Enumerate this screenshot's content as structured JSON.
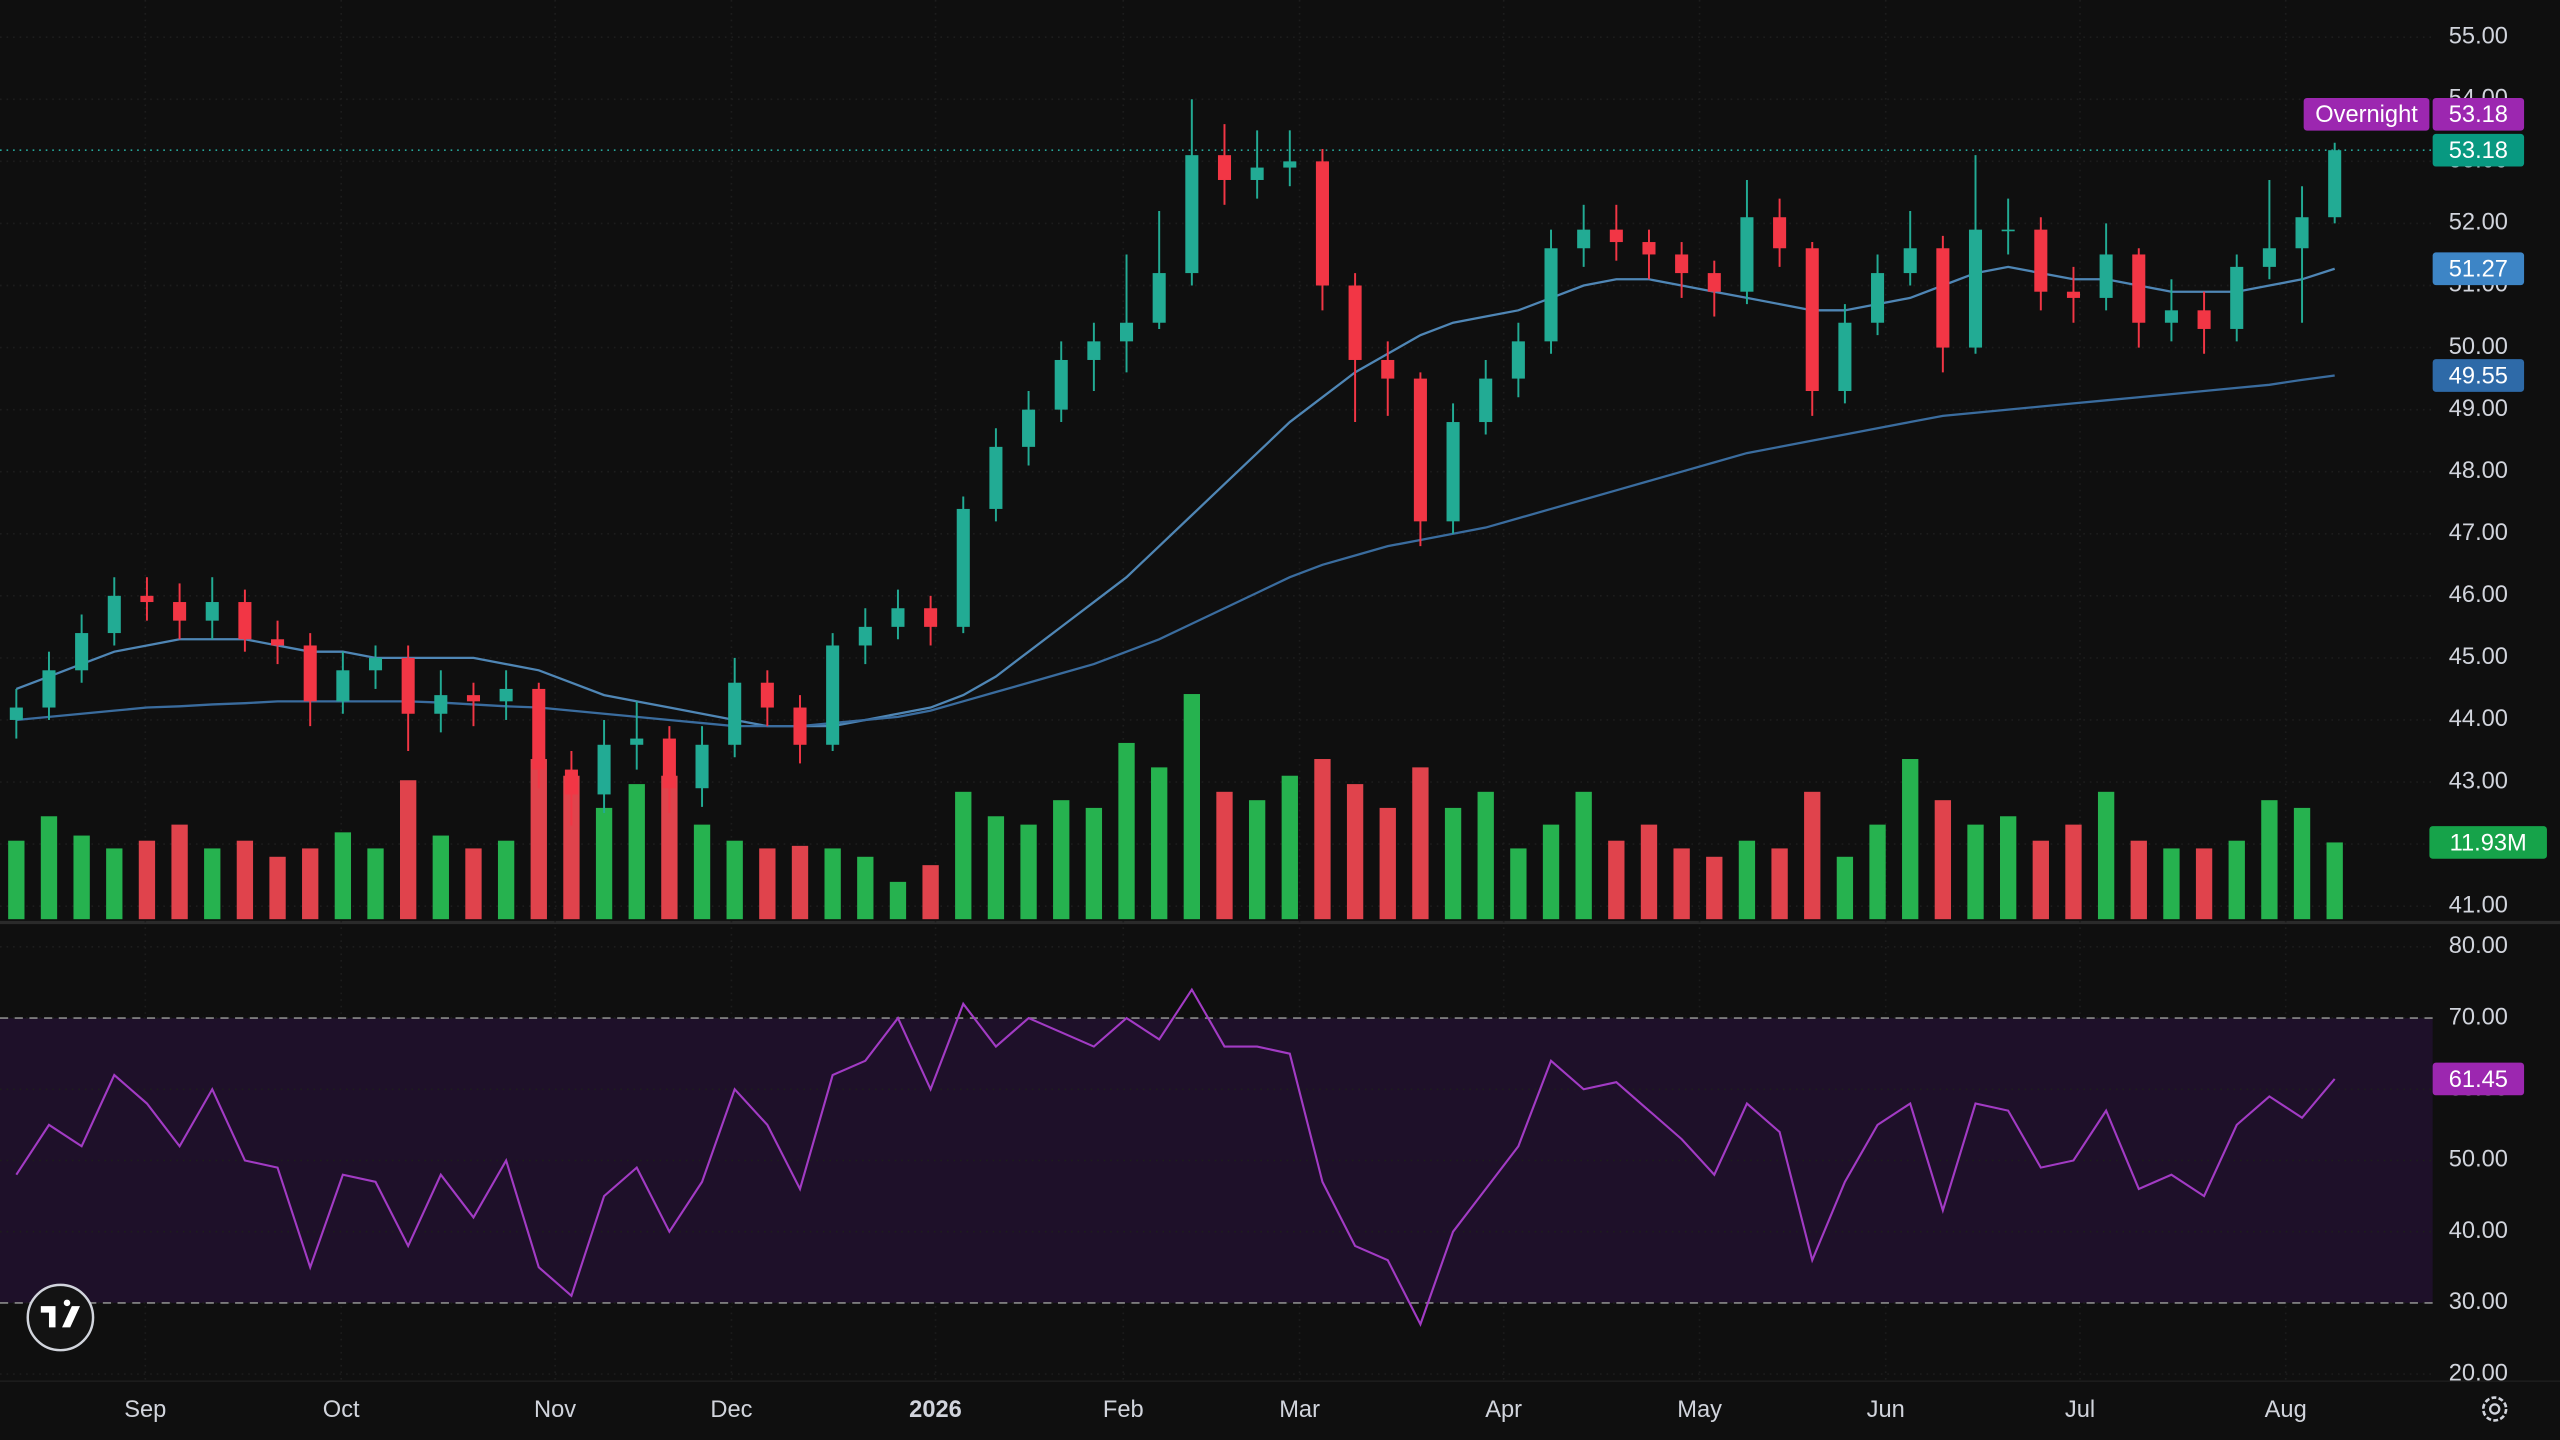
{
  "chart_data": {
    "type": "candlestick",
    "x_labels": [
      "Sep",
      "Oct",
      "Nov",
      "Dec",
      "2026",
      "Feb",
      "Mar",
      "Apr",
      "May",
      "Jun",
      "Jul",
      "Aug"
    ],
    "ylim": [
      40.79,
      55.6
    ],
    "yticks": [
      {
        "value": 41,
        "label": "41.00"
      },
      {
        "value": 42,
        "label": "42.00"
      },
      {
        "value": 43,
        "label": "43.00"
      },
      {
        "value": 44,
        "label": "44.00"
      },
      {
        "value": 45,
        "label": "45.00"
      },
      {
        "value": 46,
        "label": "46.00"
      },
      {
        "value": 47,
        "label": "47.00"
      },
      {
        "value": 48,
        "label": "48.00"
      },
      {
        "value": 49,
        "label": "49.00"
      },
      {
        "value": 50,
        "label": "50.00"
      },
      {
        "value": 51,
        "label": "51.00"
      },
      {
        "value": 52,
        "label": "52.00"
      },
      {
        "value": 53,
        "label": "53.00"
      },
      {
        "value": 54,
        "label": "54.00"
      },
      {
        "value": 55,
        "label": "55.00"
      }
    ],
    "grid": true,
    "open": [
      44.0,
      44.2,
      44.8,
      45.4,
      46.0,
      45.9,
      45.6,
      45.9,
      45.3,
      45.2,
      44.3,
      44.8,
      45.0,
      44.1,
      44.4,
      44.3,
      44.5,
      43.2,
      42.8,
      43.6,
      43.7,
      42.9,
      43.6,
      44.6,
      44.2,
      43.6,
      45.2,
      45.5,
      45.8,
      45.5,
      47.4,
      48.4,
      49.0,
      49.8,
      50.1,
      50.4,
      51.2,
      53.1,
      52.7,
      52.9,
      53.0,
      51.0,
      49.8,
      49.5,
      47.2,
      48.8,
      49.5,
      50.1,
      51.6,
      51.9,
      51.7,
      51.5,
      51.2,
      50.9,
      52.1,
      51.6,
      49.3,
      50.4,
      51.2,
      51.6,
      50.0,
      51.9,
      51.9,
      50.9,
      50.8,
      51.5,
      50.4,
      50.6,
      50.3,
      51.3,
      51.6,
      52.1
    ],
    "high": [
      44.5,
      45.1,
      45.7,
      46.3,
      46.3,
      46.2,
      46.3,
      46.1,
      45.6,
      45.4,
      45.1,
      45.2,
      45.2,
      44.8,
      44.6,
      44.8,
      44.6,
      43.5,
      44.0,
      44.3,
      43.9,
      43.9,
      45.0,
      44.8,
      44.4,
      45.4,
      45.8,
      46.1,
      46.0,
      47.6,
      48.7,
      49.3,
      50.1,
      50.4,
      51.5,
      52.2,
      54.0,
      53.6,
      53.5,
      53.5,
      53.2,
      51.2,
      50.1,
      49.6,
      49.1,
      49.8,
      50.4,
      51.9,
      52.3,
      52.3,
      51.9,
      51.7,
      51.4,
      52.7,
      52.4,
      51.7,
      50.7,
      51.5,
      52.2,
      51.8,
      53.1,
      52.4,
      52.1,
      51.3,
      52.0,
      51.6,
      51.1,
      50.9,
      51.5,
      52.7,
      52.6,
      53.3
    ],
    "low": [
      43.7,
      44.0,
      44.6,
      45.2,
      45.6,
      45.3,
      45.3,
      45.1,
      44.9,
      43.9,
      44.1,
      44.5,
      43.5,
      43.8,
      43.9,
      44.0,
      42.9,
      42.3,
      42.5,
      43.2,
      42.5,
      42.6,
      43.4,
      43.9,
      43.3,
      43.5,
      44.9,
      45.3,
      45.2,
      45.4,
      47.2,
      48.1,
      48.8,
      49.3,
      49.6,
      50.3,
      51.0,
      52.3,
      52.4,
      52.6,
      50.6,
      48.8,
      48.9,
      46.8,
      47.0,
      48.6,
      49.2,
      49.9,
      51.3,
      51.4,
      51.1,
      50.8,
      50.5,
      50.7,
      51.3,
      48.9,
      49.1,
      50.2,
      51.0,
      49.6,
      49.9,
      51.5,
      50.6,
      50.4,
      50.6,
      50.0,
      50.1,
      49.9,
      50.1,
      51.1,
      50.4,
      52.0
    ],
    "close": [
      44.2,
      44.8,
      45.4,
      46.0,
      45.9,
      45.6,
      45.9,
      45.3,
      45.2,
      44.3,
      44.8,
      45.0,
      44.1,
      44.4,
      44.3,
      44.5,
      43.2,
      42.8,
      43.6,
      43.7,
      42.9,
      43.6,
      44.6,
      44.2,
      43.6,
      45.2,
      45.5,
      45.8,
      45.5,
      47.4,
      48.4,
      49.0,
      49.8,
      50.1,
      50.4,
      51.2,
      53.1,
      52.7,
      52.9,
      53.0,
      51.0,
      49.8,
      49.5,
      47.2,
      48.8,
      49.5,
      50.1,
      51.6,
      51.9,
      51.7,
      51.5,
      51.2,
      50.9,
      52.1,
      51.6,
      49.3,
      50.4,
      51.2,
      51.6,
      50.0,
      51.9,
      51.9,
      50.9,
      50.8,
      51.5,
      50.4,
      50.6,
      50.3,
      51.3,
      51.6,
      52.1,
      53.18
    ],
    "up_color": "#22ab94",
    "down_color": "#f23645",
    "last_color": "#089981",
    "moving_averages": [
      {
        "color": "#4f86b5",
        "values": [
          44.5,
          44.7,
          44.9,
          45.1,
          45.2,
          45.3,
          45.3,
          45.3,
          45.2,
          45.1,
          45.1,
          45.0,
          45.0,
          45.0,
          45.0,
          44.9,
          44.8,
          44.6,
          44.4,
          44.3,
          44.2,
          44.1,
          44.0,
          43.9,
          43.9,
          43.9,
          44.0,
          44.1,
          44.2,
          44.4,
          44.7,
          45.1,
          45.5,
          45.9,
          46.3,
          46.8,
          47.3,
          47.8,
          48.3,
          48.8,
          49.2,
          49.6,
          49.9,
          50.2,
          50.4,
          50.5,
          50.6,
          50.8,
          51.0,
          51.1,
          51.1,
          51.0,
          50.9,
          50.8,
          50.7,
          50.6,
          50.6,
          50.7,
          50.8,
          51.0,
          51.2,
          51.3,
          51.2,
          51.1,
          51.1,
          51.0,
          50.9,
          50.9,
          50.9,
          51.0,
          51.1,
          51.27
        ]
      },
      {
        "color": "#3a6c9e",
        "values": [
          44.0,
          44.05,
          44.1,
          44.15,
          44.2,
          44.22,
          44.25,
          44.27,
          44.3,
          44.3,
          44.3,
          44.3,
          44.3,
          44.28,
          44.25,
          44.22,
          44.2,
          44.15,
          44.1,
          44.05,
          44.0,
          43.95,
          43.9,
          43.9,
          43.9,
          43.95,
          44.0,
          44.05,
          44.15,
          44.3,
          44.45,
          44.6,
          44.75,
          44.9,
          45.1,
          45.3,
          45.55,
          45.8,
          46.05,
          46.3,
          46.5,
          46.65,
          46.8,
          46.9,
          47.0,
          47.1,
          47.25,
          47.4,
          47.55,
          47.7,
          47.85,
          48.0,
          48.15,
          48.3,
          48.4,
          48.5,
          48.6,
          48.7,
          48.8,
          48.9,
          48.95,
          49.0,
          49.05,
          49.1,
          49.15,
          49.2,
          49.25,
          49.3,
          49.35,
          49.4,
          49.48,
          49.55
        ]
      }
    ],
    "overnight": {
      "label": "Overnight",
      "value": 53.18,
      "color": "#9c27b0"
    },
    "volume": {
      "label": "11.93M",
      "up_color": "#26b24f",
      "down_color": "#e0434c",
      "values": [
        12.2,
        16,
        13,
        11,
        12.2,
        14.7,
        11,
        12.2,
        9.7,
        11,
        13.5,
        11,
        21.6,
        13,
        11,
        12.2,
        24.9,
        22.3,
        17.3,
        21,
        22.3,
        14.7,
        12.2,
        11,
        11.4,
        11,
        9.7,
        5.8,
        8.4,
        19.8,
        16,
        14.7,
        18.5,
        17.3,
        27.4,
        23.6,
        35,
        19.8,
        18.5,
        22.3,
        24.9,
        21,
        17.3,
        23.6,
        17.3,
        19.8,
        11,
        14.7,
        19.8,
        12.2,
        14.7,
        11,
        9.7,
        12.2,
        11,
        19.8,
        9.7,
        14.7,
        24.9,
        18.5,
        14.7,
        16,
        12.2,
        14.7,
        19.8,
        12.2,
        11,
        11,
        12.2,
        18.5,
        17.3,
        11.93
      ]
    },
    "rsi": {
      "color": "#a23bc4",
      "ylim": [
        19.0,
        83.2
      ],
      "bands": [
        30,
        70
      ],
      "yticks": [
        {
          "value": 20,
          "label": "20.00"
        },
        {
          "value": 30,
          "label": "30.00"
        },
        {
          "value": 40,
          "label": "40.00"
        },
        {
          "value": 50,
          "label": "50.00"
        },
        {
          "value": 60,
          "label": "60.00"
        },
        {
          "value": 70,
          "label": "70.00"
        },
        {
          "value": 80,
          "label": "80.00"
        }
      ],
      "values": [
        48,
        55,
        52,
        62,
        58,
        52,
        60,
        50,
        49,
        35,
        48,
        47,
        38,
        48,
        42,
        50,
        35,
        31,
        45,
        49,
        40,
        47,
        60,
        55,
        46,
        62,
        64,
        70,
        60,
        72,
        66,
        70,
        68,
        66,
        70,
        67,
        74,
        66,
        66,
        65,
        47,
        38,
        36,
        27,
        40,
        46,
        52,
        64,
        60,
        61,
        57,
        53,
        48,
        58,
        54,
        36,
        47,
        55,
        58,
        43,
        58,
        57,
        49,
        50,
        57,
        46,
        48,
        45,
        55,
        59,
        56,
        61.45
      ]
    }
  }
}
